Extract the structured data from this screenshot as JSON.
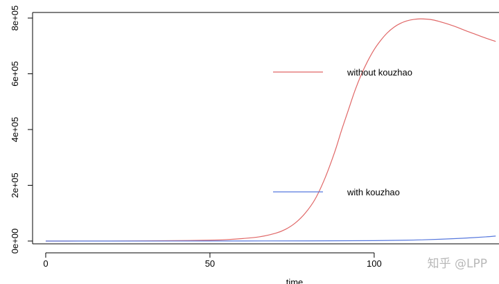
{
  "chart_data": {
    "type": "line",
    "title": "",
    "xlabel": "time",
    "ylabel": "",
    "xlim": [
      -4,
      138
    ],
    "ylim": [
      -10000,
      820000
    ],
    "x_ticks": [
      0,
      50,
      100
    ],
    "x_tick_labels": [
      "0",
      "50",
      "100"
    ],
    "y_ticks": [
      0,
      200000,
      400000,
      600000,
      800000
    ],
    "y_tick_labels": [
      "0e+00",
      "2e+05",
      "4e+05",
      "6e+05",
      "8e+05"
    ],
    "grid": false,
    "legend_position": "center-right",
    "series": [
      {
        "name": "without kouzhao",
        "color": "#E06666",
        "x": [
          0,
          10,
          20,
          30,
          40,
          50,
          55,
          60,
          65,
          70,
          73,
          76,
          79,
          82,
          85,
          88,
          90,
          92,
          94,
          96,
          98,
          100,
          102,
          104,
          106,
          108,
          110,
          112,
          114,
          116,
          118,
          120,
          122,
          125,
          128,
          131,
          134,
          137
        ],
        "y": [
          0,
          50,
          150,
          500,
          1500,
          3000,
          5000,
          9000,
          15000,
          28000,
          42000,
          65000,
          100000,
          150000,
          225000,
          320000,
          395000,
          465000,
          535000,
          595000,
          645000,
          687000,
          720000,
          747000,
          767000,
          781000,
          790000,
          795000,
          797000,
          796000,
          793000,
          787000,
          780000,
          768000,
          754000,
          741000,
          728000,
          716000
        ]
      },
      {
        "name": "with kouzhao",
        "color": "#5577DD",
        "x": [
          0,
          20,
          40,
          60,
          80,
          100,
          110,
          115,
          120,
          125,
          130,
          134,
          137
        ],
        "y": [
          0,
          0,
          100,
          300,
          600,
          1500,
          3000,
          4500,
          6500,
          9000,
          12000,
          15000,
          18000
        ]
      }
    ]
  },
  "legend": {
    "items": [
      {
        "label": "without kouzhao",
        "color": "#E06666"
      },
      {
        "label": "with kouzhao",
        "color": "#5577DD"
      }
    ]
  },
  "watermark": "知乎 @LPP"
}
